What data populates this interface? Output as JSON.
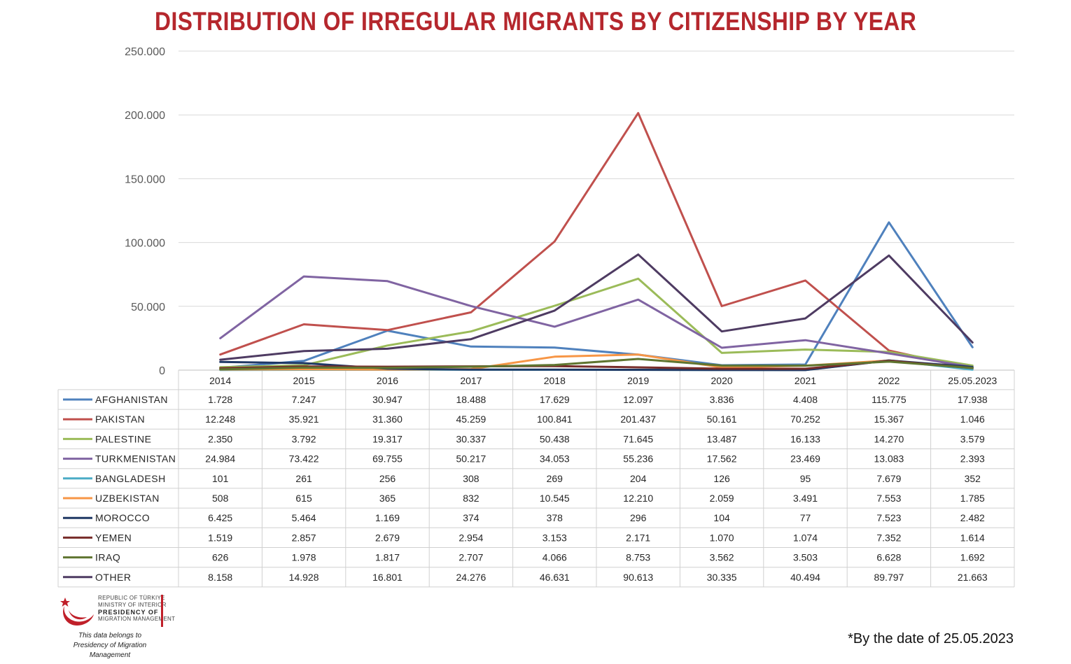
{
  "title": "DISTRIBUTION OF IRREGULAR MIGRANTS BY CITIZENSHIP BY YEAR",
  "footnote": "*By the date of 25.05.2023",
  "logo": {
    "line1": "REPUBLIC OF TÜRKIYE",
    "line2": "MINISTRY OF INTERIOR",
    "line3": "PRESIDENCY OF",
    "line4": "MIGRATION MANAGEMENT",
    "note1": "This data belongs to",
    "note2": "Presidency of Migration Management"
  },
  "chart_data": {
    "type": "line",
    "title": "DISTRIBUTION OF IRREGULAR MIGRANTS BY CITIZENSHIP BY YEAR",
    "categories": [
      "2014",
      "2015",
      "2016",
      "2017",
      "2018",
      "2019",
      "2020",
      "2021",
      "2022",
      "25.05.2023"
    ],
    "ylim": [
      0,
      250000
    ],
    "yticks": [
      0,
      50000,
      100000,
      150000,
      200000,
      250000
    ],
    "ytick_labels": [
      "0",
      "50.000",
      "100.000",
      "150.000",
      "200.000",
      "250.000"
    ],
    "grid": true,
    "legend": "data table below chart",
    "series": [
      {
        "name": "AFGHANISTAN",
        "color": "#4f81bd",
        "values": [
          1728,
          7247,
          30947,
          18488,
          17629,
          12097,
          3836,
          4408,
          115775,
          17938
        ],
        "labels": [
          "1.728",
          "7.247",
          "30.947",
          "18.488",
          "17.629",
          "12.097",
          "3.836",
          "4.408",
          "115.775",
          "17.938"
        ]
      },
      {
        "name": "PAKISTAN",
        "color": "#c0504d",
        "values": [
          12248,
          35921,
          31360,
          45259,
          100841,
          201437,
          50161,
          70252,
          15367,
          1046
        ],
        "labels": [
          "12.248",
          "35.921",
          "31.360",
          "45.259",
          "100.841",
          "201.437",
          "50.161",
          "70.252",
          "15.367",
          "1.046"
        ]
      },
      {
        "name": "PALESTINE",
        "color": "#9bbb59",
        "values": [
          2350,
          3792,
          19317,
          30337,
          50438,
          71645,
          13487,
          16133,
          14270,
          3579
        ],
        "labels": [
          "2.350",
          "3.792",
          "19.317",
          "30.337",
          "50.438",
          "71.645",
          "13.487",
          "16.133",
          "14.270",
          "3.579"
        ]
      },
      {
        "name": "TURKMENISTAN",
        "color": "#8064a2",
        "values": [
          24984,
          73422,
          69755,
          50217,
          34053,
          55236,
          17562,
          23469,
          13083,
          2393
        ],
        "labels": [
          "24.984",
          "73.422",
          "69.755",
          "50.217",
          "34.053",
          "55.236",
          "17.562",
          "23.469",
          "13.083",
          "2.393"
        ]
      },
      {
        "name": "BANGLADESH",
        "color": "#4bacc6",
        "values": [
          101,
          261,
          256,
          308,
          269,
          204,
          126,
          95,
          7679,
          352
        ],
        "labels": [
          "101",
          "261",
          "256",
          "308",
          "269",
          "204",
          "126",
          "95",
          "7.679",
          "352"
        ]
      },
      {
        "name": "UZBEKISTAN",
        "color": "#f79646",
        "values": [
          508,
          615,
          365,
          832,
          10545,
          12210,
          2059,
          3491,
          7553,
          1785
        ],
        "labels": [
          "508",
          "615",
          "365",
          "832",
          "10.545",
          "12.210",
          "2.059",
          "3.491",
          "7.553",
          "1.785"
        ]
      },
      {
        "name": "MOROCCO",
        "color": "#1f3864",
        "values": [
          6425,
          5464,
          1169,
          374,
          378,
          296,
          104,
          77,
          7523,
          2482
        ],
        "labels": [
          "6.425",
          "5.464",
          "1.169",
          "374",
          "378",
          "296",
          "104",
          "77",
          "7.523",
          "2.482"
        ]
      },
      {
        "name": "YEMEN",
        "color": "#772c2a",
        "values": [
          1519,
          2857,
          2679,
          2954,
          3153,
          2171,
          1070,
          1074,
          7352,
          1614
        ],
        "labels": [
          "1.519",
          "2.857",
          "2.679",
          "2.954",
          "3.153",
          "2.171",
          "1.070",
          "1.074",
          "7.352",
          "1.614"
        ]
      },
      {
        "name": "IRAQ",
        "color": "#5f7530",
        "values": [
          626,
          1978,
          1817,
          2707,
          4066,
          8753,
          3562,
          3503,
          6628,
          1692
        ],
        "labels": [
          "626",
          "1.978",
          "1.817",
          "2.707",
          "4.066",
          "8.753",
          "3.562",
          "3.503",
          "6.628",
          "1.692"
        ]
      },
      {
        "name": "OTHER",
        "color": "#4e3b62",
        "values": [
          8158,
          14928,
          16801,
          24276,
          46631,
          90613,
          30335,
          40494,
          89797,
          21663
        ],
        "labels": [
          "8.158",
          "14.928",
          "16.801",
          "24.276",
          "46.631",
          "90.613",
          "30.335",
          "40.494",
          "89.797",
          "21.663"
        ]
      }
    ]
  }
}
